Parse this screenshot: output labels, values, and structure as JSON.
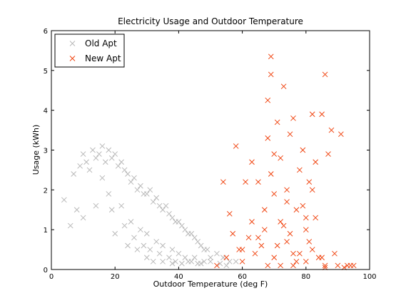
{
  "chart_data": {
    "type": "scatter",
    "title": "Electricity Usage and Outdoor Temperature",
    "x_label": "Outdoor Temperature (deg F)",
    "y_label": "Usage (kWh)",
    "xlim": [
      0,
      100
    ],
    "ylim": [
      0,
      6
    ],
    "xticks": [
      0,
      20,
      40,
      60,
      80,
      100
    ],
    "yticks": [
      0,
      1,
      2,
      3,
      4,
      5,
      6
    ],
    "legend": "upper left",
    "marker": "x",
    "series": [
      {
        "name": "Old Apt",
        "color": "#b8b8b8",
        "x": [
          4,
          6,
          7,
          8,
          9,
          10,
          11,
          12,
          13,
          14,
          15,
          16,
          17,
          18,
          19,
          20,
          21,
          22,
          23,
          24,
          25,
          26,
          27,
          28,
          29,
          30,
          31,
          32,
          33,
          34,
          35,
          36,
          37,
          38,
          39,
          40,
          41,
          42,
          43,
          44,
          45,
          46,
          47,
          48,
          49,
          50,
          52,
          54,
          56,
          58,
          10,
          14,
          18,
          22,
          25,
          28,
          30,
          33,
          35,
          38,
          40,
          42,
          45,
          48,
          50,
          53,
          55,
          20,
          24,
          27,
          30,
          32,
          35,
          38,
          41,
          44,
          47,
          16,
          19,
          23,
          26,
          29,
          31,
          34,
          37,
          39,
          43,
          46
        ],
        "y": [
          1.75,
          1.1,
          2.4,
          1.5,
          2.6,
          2.9,
          2.7,
          2.5,
          3.0,
          2.8,
          2.9,
          3.1,
          2.7,
          3.0,
          2.8,
          2.9,
          2.6,
          2.7,
          2.5,
          2.4,
          2.2,
          2.3,
          2.0,
          2.1,
          1.9,
          1.9,
          2.0,
          1.7,
          1.8,
          1.6,
          1.5,
          1.6,
          1.4,
          1.3,
          1.2,
          1.2,
          1.1,
          1.0,
          0.9,
          0.9,
          0.8,
          0.7,
          0.6,
          0.5,
          0.5,
          0.3,
          0.4,
          0.3,
          0.2,
          0.2,
          1.3,
          1.6,
          1.9,
          1.6,
          1.2,
          1.0,
          0.9,
          0.7,
          0.6,
          0.5,
          0.4,
          0.3,
          0.3,
          0.2,
          0.2,
          0.15,
          0.1,
          0.9,
          0.6,
          0.5,
          0.3,
          0.2,
          0.2,
          0.15,
          0.15,
          0.2,
          0.15,
          2.3,
          1.5,
          1.1,
          0.8,
          0.6,
          0.5,
          0.4,
          0.3,
          0.2,
          0.2,
          0.15
        ]
      },
      {
        "name": "New Apt",
        "color": "#f04410",
        "x": [
          52,
          54,
          55,
          56,
          58,
          59,
          60,
          61,
          62,
          63,
          64,
          65,
          66,
          67,
          68,
          69,
          69,
          70,
          70,
          71,
          72,
          72,
          73,
          74,
          74,
          75,
          76,
          76,
          77,
          78,
          78,
          79,
          80,
          80,
          81,
          82,
          82,
          83,
          84,
          85,
          86,
          86,
          87,
          88,
          89,
          90,
          91,
          92,
          93,
          94,
          95,
          57,
          60,
          63,
          65,
          67,
          68,
          70,
          71,
          73,
          75,
          77,
          79,
          81,
          83,
          85,
          68,
          69,
          72,
          74,
          76,
          80,
          82,
          86
        ],
        "y": [
          0.1,
          2.2,
          0.3,
          1.4,
          3.1,
          0.5,
          0.2,
          2.2,
          0.8,
          2.7,
          0.4,
          2.2,
          0.6,
          1.0,
          3.3,
          5.35,
          4.9,
          0.3,
          2.9,
          3.7,
          1.2,
          0.1,
          4.6,
          2.0,
          0.7,
          3.4,
          0.1,
          3.8,
          1.5,
          2.5,
          0.4,
          3.0,
          1.0,
          0.2,
          2.2,
          3.9,
          0.5,
          2.7,
          0.3,
          3.9,
          4.9,
          0.1,
          2.9,
          3.5,
          0.4,
          0.1,
          3.4,
          0.05,
          0.1,
          0.1,
          0.1,
          0.9,
          0.5,
          1.2,
          0.8,
          1.5,
          0.1,
          1.9,
          0.6,
          1.1,
          0.9,
          0.2,
          1.6,
          0.7,
          1.3,
          0.3,
          4.25,
          2.4,
          2.8,
          1.7,
          0.4,
          1.3,
          2.0,
          0.05
        ]
      }
    ]
  }
}
